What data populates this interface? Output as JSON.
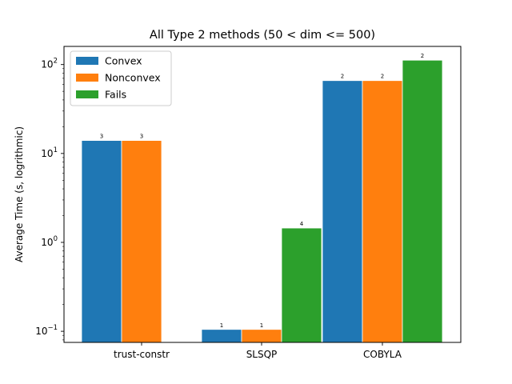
{
  "chart_data": {
    "type": "bar",
    "title": "All Type 2 methods (50 < dim <= 500)",
    "xlabel": "",
    "ylabel": "Average Time (s, logrithmic)",
    "yscale": "log",
    "ylim": [
      0.075,
      160
    ],
    "yticks": [
      {
        "base": "10",
        "exp": "−1",
        "value": 0.1
      },
      {
        "base": "10",
        "exp": "0",
        "value": 1
      },
      {
        "base": "10",
        "exp": "1",
        "value": 10
      },
      {
        "base": "10",
        "exp": "2",
        "value": 100
      }
    ],
    "categories": [
      "trust-constr",
      "SLSQP",
      "COBYLA"
    ],
    "legend_position": "top-left",
    "series": [
      {
        "name": "Convex",
        "color": "#1f77b4",
        "values": [
          14,
          0.105,
          66
        ],
        "labels": [
          "3",
          "1",
          "2"
        ]
      },
      {
        "name": "Nonconvex",
        "color": "#ff7f0e",
        "values": [
          14,
          0.105,
          66
        ],
        "labels": [
          "3",
          "1",
          "2"
        ]
      },
      {
        "name": "Fails",
        "color": "#2ca02c",
        "values": [
          null,
          1.45,
          112
        ],
        "labels": [
          "",
          "4",
          "2"
        ]
      }
    ],
    "grid": false
  }
}
